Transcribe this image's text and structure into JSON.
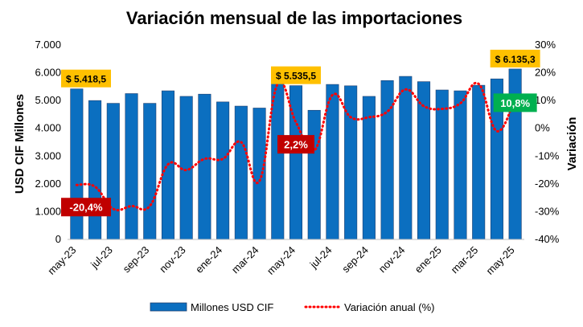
{
  "chart_data": {
    "type": "bar",
    "title": "Variación mensual de las importaciones",
    "ylabel_left": "USD CIF Millones",
    "ylabel_right": "Variación",
    "ylim_left": [
      0,
      7000
    ],
    "ylim_right": [
      -40,
      30
    ],
    "yticks_left": [
      "0",
      "1.000",
      "2.000",
      "3.000",
      "4.000",
      "5.000",
      "6.000",
      "7.000"
    ],
    "yticks_right": [
      "-40%",
      "-30%",
      "-20%",
      "-10%",
      "0%",
      "10%",
      "20%",
      "30%"
    ],
    "months": [
      "may-23",
      "jun-23",
      "jul-23",
      "ago-23",
      "sep-23",
      "oct-23",
      "nov-23",
      "dic-23",
      "ene-24",
      "feb-24",
      "mar-24",
      "abr-24",
      "may-24",
      "jun-24",
      "jul-24",
      "ago-24",
      "sep-24",
      "oct-24",
      "nov-24",
      "dic-24",
      "ene-25",
      "feb-25",
      "mar-25",
      "abr-25",
      "may-25"
    ],
    "xtick_labels": [
      "may-23",
      "jul-23",
      "sep-23",
      "nov-23",
      "ene-24",
      "mar-24",
      "may-24",
      "jul-24",
      "sep-24",
      "nov-24",
      "ene-25",
      "mar-25",
      "may-25"
    ],
    "series": [
      {
        "name": "Millones USD CIF",
        "kind": "bar",
        "color": "#0b6fc0",
        "values": [
          5418.5,
          5000,
          4900,
          5250,
          4900,
          5350,
          5150,
          5230,
          4950,
          4800,
          4730,
          5750,
          5535.5,
          4650,
          5580,
          5530,
          5150,
          5720,
          5870,
          5680,
          5380,
          5350,
          5550,
          5780,
          6135.3
        ]
      },
      {
        "name": "Variación anual (%)",
        "kind": "line",
        "color": "#ff0000",
        "values": [
          -20.4,
          -21,
          -29,
          -28,
          -28,
          -13,
          -15,
          -11,
          -11,
          -5,
          -19,
          16,
          2.2,
          -8,
          12,
          4,
          4,
          6,
          14,
          8,
          7,
          9,
          16,
          -1,
          10.8
        ]
      }
    ],
    "annotations": [
      {
        "text": "$ 5.418,5",
        "index": 0,
        "style": "yellow"
      },
      {
        "text": "$ 5.535,5",
        "index": 12,
        "style": "yellow"
      },
      {
        "text": "$ 6.135,3",
        "index": 24,
        "style": "yellow"
      },
      {
        "text": "-20,4%",
        "index": 0,
        "style": "red"
      },
      {
        "text": "2,2%",
        "index": 12,
        "style": "red"
      },
      {
        "text": "10,8%",
        "index": 24,
        "style": "green"
      }
    ],
    "colors": {
      "callout_yellow": "#ffc000",
      "callout_red": "#c00000",
      "callout_green": "#00b050"
    },
    "legend_position": "bottom"
  }
}
